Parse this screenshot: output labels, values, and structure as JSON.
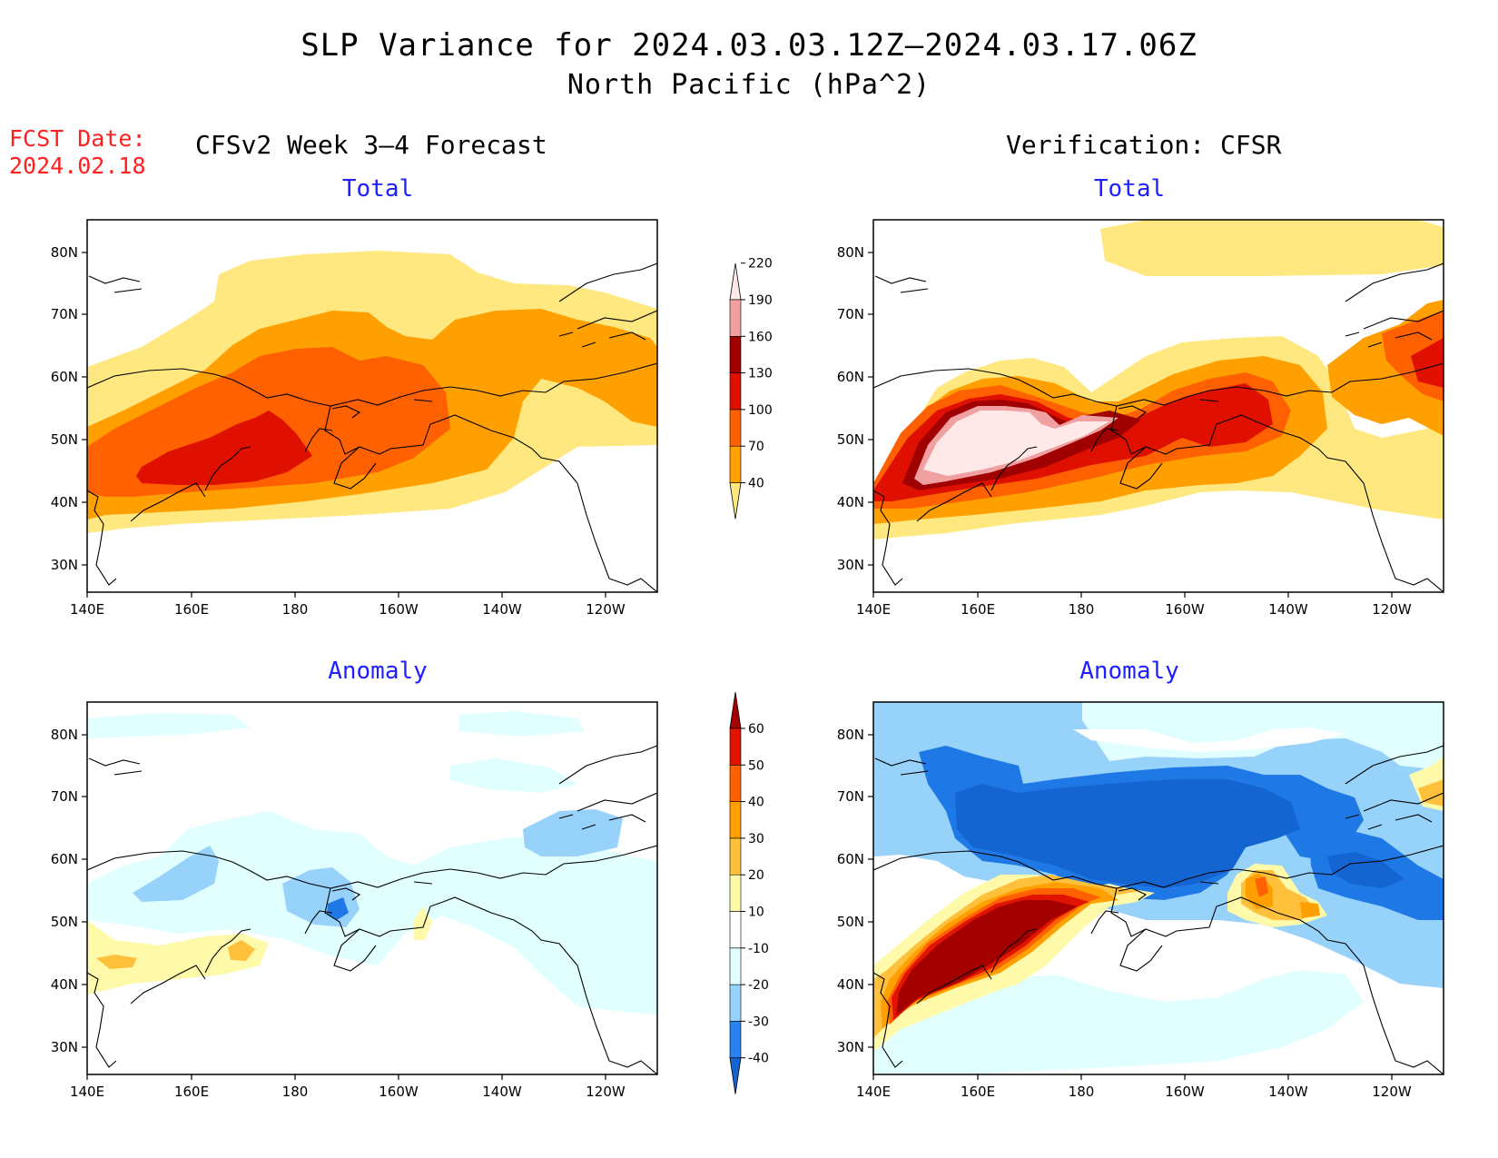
{
  "title_line1": "SLP Variance for 2024.03.03.12Z–2024.03.17.06Z",
  "title_line2": "North Pacific (hPa^2)",
  "fcst_label": "FCST Date:",
  "fcst_date": "2024.02.18",
  "left_header": "CFSv2 Week 3–4 Forecast",
  "right_header": "Verification: CFSR",
  "panel_titles": {
    "top_left": "Total",
    "top_right": "Total",
    "bottom_left": "Anomaly",
    "bottom_right": "Anomaly"
  },
  "lat_labels": [
    "80N",
    "70N",
    "60N",
    "50N",
    "40N",
    "30N"
  ],
  "lon_labels": [
    "140E",
    "160E",
    "180",
    "160W",
    "140W",
    "120W"
  ],
  "colorbar_total": {
    "levels": [
      "40",
      "70",
      "100",
      "130",
      "160",
      "190",
      "220"
    ],
    "colors": [
      "#ffe880",
      "#ffa000",
      "#ff6000",
      "#e01000",
      "#a00000",
      "#f0a0a0",
      "#ffe8e8"
    ]
  },
  "colorbar_anomaly": {
    "levels": [
      "-40",
      "-30",
      "-20",
      "-10",
      "10",
      "20",
      "30",
      "40",
      "50",
      "60"
    ],
    "colors": [
      "#1464d2",
      "#2882f0",
      "#96d2fa",
      "#e1ffff",
      "#ffffff",
      "#fffaaa",
      "#ffc03c",
      "#ffa000",
      "#ff6000",
      "#e11400",
      "#a50000"
    ]
  }
}
